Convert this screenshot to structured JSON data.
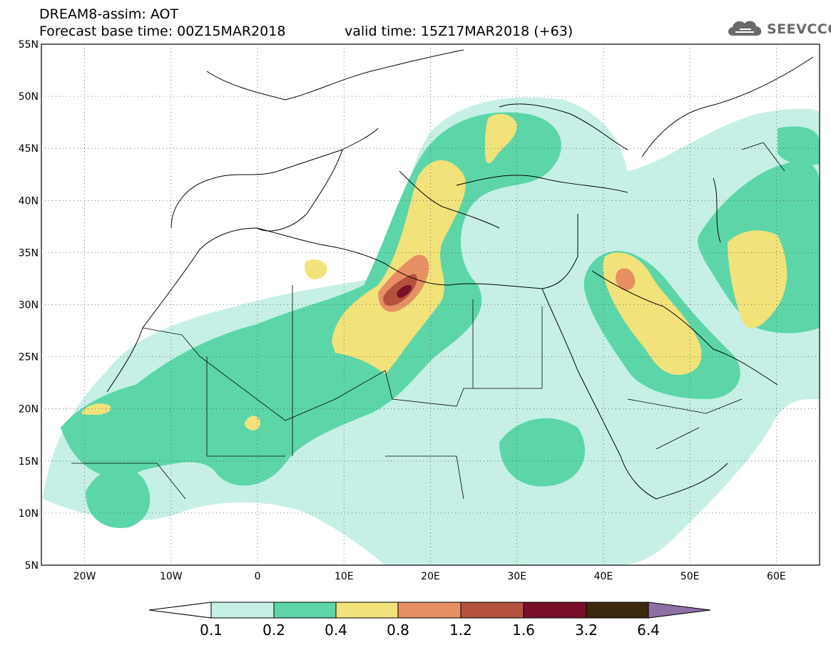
{
  "header": {
    "title": "DREAM8-assim: AOT",
    "base_time": "Forecast base time: 00Z15MAR2018",
    "valid_time": "valid time: 15Z17MAR2018 (+63)"
  },
  "logo": {
    "text": "SEEVCCC",
    "icon": "cloud-icon"
  },
  "map": {
    "lat_labels": [
      "55N",
      "50N",
      "45N",
      "40N",
      "35N",
      "30N",
      "25N",
      "20N",
      "15N",
      "10N",
      "5N"
    ],
    "lat_values": [
      55,
      50,
      45,
      40,
      35,
      30,
      25,
      20,
      15,
      10,
      5
    ],
    "lon_labels": [
      "20W",
      "10W",
      "0",
      "10E",
      "20E",
      "30E",
      "40E",
      "50E",
      "60E"
    ],
    "lon_values": [
      -20,
      -10,
      0,
      10,
      20,
      30,
      40,
      50,
      60
    ],
    "lon_range": [
      -25,
      65
    ],
    "lat_range": [
      5,
      55
    ],
    "grid": "dotted"
  },
  "colorbar": {
    "labels": [
      "0.1",
      "0.2",
      "0.4",
      "0.8",
      "1.2",
      "1.6",
      "3.2",
      "6.4"
    ],
    "colors": [
      "#ffffff",
      "#c6f0e6",
      "#5cd6a8",
      "#f2e27a",
      "#e69063",
      "#b4513e",
      "#7a0f2a",
      "#3d2810",
      "#8e6fa6"
    ]
  }
}
